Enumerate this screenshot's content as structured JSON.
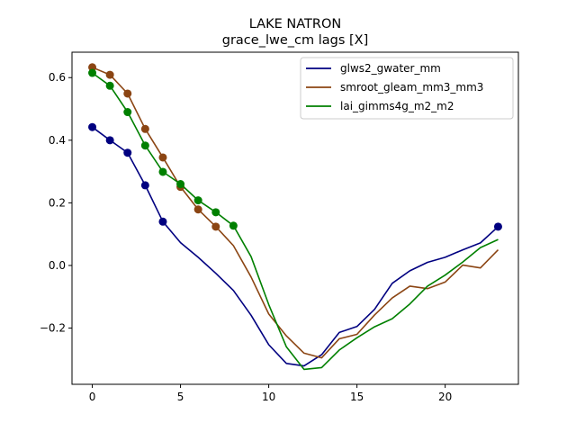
{
  "chart_data": {
    "type": "line",
    "title": "LAKE NATRON",
    "subtitle": "grace_lwe_cm lags [X]",
    "xlabel": "",
    "ylabel": "",
    "xlim": [
      -1.15,
      24.15
    ],
    "ylim": [
      -0.3796,
      0.6812
    ],
    "xticks": [
      0,
      5,
      10,
      15,
      20
    ],
    "xtick_labels": [
      "0",
      "5",
      "10",
      "15",
      "20"
    ],
    "yticks": [
      -0.2,
      0.0,
      0.2,
      0.4,
      0.6
    ],
    "ytick_labels": [
      "−0.2",
      "0.0",
      "0.2",
      "0.4",
      "0.6"
    ],
    "grid": false,
    "legend_position": "top-right",
    "series": [
      {
        "name": "glws2_gwater_mm",
        "color": "#000080",
        "x": [
          0,
          1,
          2,
          3,
          4,
          5,
          6,
          7,
          8,
          9,
          10,
          11,
          12,
          13,
          14,
          15,
          16,
          17,
          18,
          19,
          20,
          21,
          22,
          23
        ],
        "y": [
          0.442,
          0.4,
          0.36,
          0.256,
          0.14,
          0.073,
          0.026,
          -0.025,
          -0.08,
          -0.159,
          -0.253,
          -0.313,
          -0.321,
          -0.285,
          -0.214,
          -0.195,
          -0.14,
          -0.057,
          -0.017,
          0.01,
          0.026,
          0.05,
          0.072,
          0.124
        ],
        "marker_x": [
          0,
          1,
          2,
          3,
          4,
          23
        ],
        "marker_y": [
          0.442,
          0.4,
          0.36,
          0.256,
          0.14,
          0.124
        ]
      },
      {
        "name": "smroot_gleam_mm3_mm3",
        "color": "#8b4513",
        "x": [
          0,
          1,
          2,
          3,
          4,
          5,
          6,
          7,
          8,
          9,
          10,
          11,
          12,
          13,
          14,
          15,
          16,
          17,
          18,
          19,
          20,
          21,
          22,
          23
        ],
        "y": [
          0.633,
          0.609,
          0.549,
          0.436,
          0.345,
          0.251,
          0.179,
          0.124,
          0.063,
          -0.037,
          -0.155,
          -0.225,
          -0.28,
          -0.295,
          -0.234,
          -0.22,
          -0.158,
          -0.104,
          -0.066,
          -0.074,
          -0.053,
          0.001,
          -0.008,
          0.05
        ],
        "marker_x": [
          0,
          1,
          2,
          3,
          4,
          5,
          6,
          7
        ],
        "marker_y": [
          0.633,
          0.609,
          0.549,
          0.436,
          0.345,
          0.251,
          0.179,
          0.124
        ]
      },
      {
        "name": "lai_gimms4g_m2_m2",
        "color": "#008000",
        "x": [
          0,
          1,
          2,
          3,
          4,
          5,
          6,
          7,
          8,
          9,
          10,
          11,
          12,
          13,
          14,
          15,
          16,
          17,
          18,
          19,
          20,
          21,
          22,
          23
        ],
        "y": [
          0.615,
          0.574,
          0.49,
          0.383,
          0.299,
          0.26,
          0.208,
          0.17,
          0.127,
          0.028,
          -0.125,
          -0.26,
          -0.332,
          -0.326,
          -0.27,
          -0.231,
          -0.196,
          -0.17,
          -0.123,
          -0.066,
          -0.031,
          0.011,
          0.057,
          0.083
        ],
        "marker_x": [
          0,
          1,
          2,
          3,
          4,
          5,
          6,
          7,
          8
        ],
        "marker_y": [
          0.615,
          0.574,
          0.49,
          0.383,
          0.299,
          0.26,
          0.208,
          0.17,
          0.127
        ]
      }
    ]
  }
}
